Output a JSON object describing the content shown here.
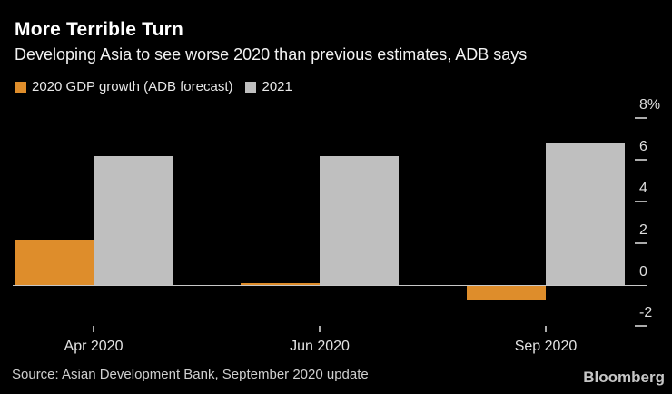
{
  "title": "More Terrible Turn",
  "subtitle": "Developing Asia to see worse 2020 than previous estimates, ADB says",
  "source": "Source: Asian Development Bank, September 2020 update",
  "brand": "Bloomberg",
  "colors": {
    "background": "#000000",
    "title_text": "#ffffff",
    "subtitle_text": "#f2f2f2",
    "axis_text": "#dedede",
    "tick": "#ababab",
    "baseline": "#c7c7c7",
    "orange": "#de8d2b",
    "gray": "#bfbfbf"
  },
  "chart_data": {
    "type": "bar",
    "categories": [
      "Apr 2020",
      "Jun 2020",
      "Sep 2020"
    ],
    "series": [
      {
        "name": "2020 GDP growth (ADB forecast)",
        "color": "#de8d2b",
        "values": [
          2.2,
          0.1,
          -0.7
        ]
      },
      {
        "name": "2021",
        "color": "#bfbfbf",
        "values": [
          6.2,
          6.2,
          6.8
        ]
      }
    ],
    "title": "More Terrible Turn",
    "subtitle": "Developing Asia to see worse 2020 than previous estimates, ADB says",
    "xlabel": "",
    "ylabel": "",
    "ylim": [
      -2.8,
      8.6
    ],
    "yticks": [
      {
        "value": 8,
        "label": "8%"
      },
      {
        "value": 6,
        "label": "6"
      },
      {
        "value": 4,
        "label": "4"
      },
      {
        "value": 2,
        "label": "2"
      },
      {
        "value": 0,
        "label": "0"
      },
      {
        "value": -2,
        "label": "-2"
      }
    ],
    "grid": false,
    "legend_position": "top-left"
  }
}
